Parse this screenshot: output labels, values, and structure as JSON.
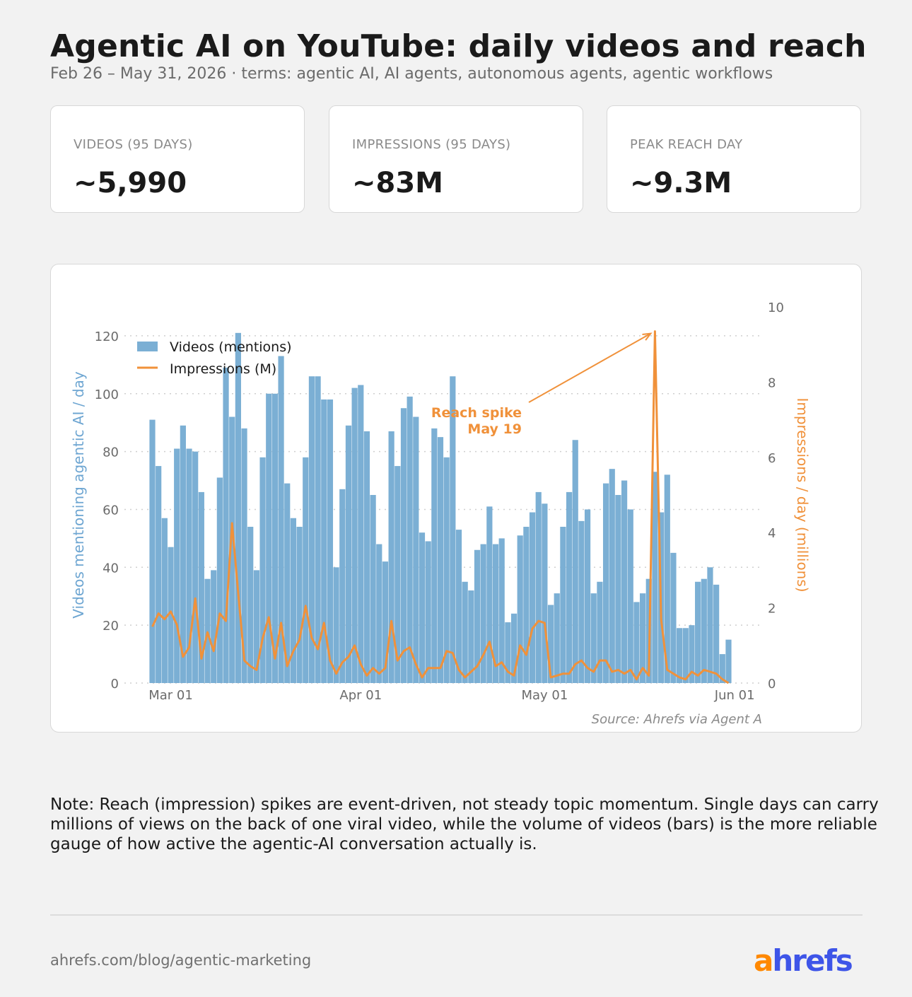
{
  "header": {
    "title": "Agentic AI on YouTube: daily videos and reach",
    "subtitle": "Feb 26 – May 31, 2026  ·  terms: agentic AI, AI agents, autonomous agents, agentic workflows"
  },
  "kpis": [
    {
      "label": "VIDEOS (95 DAYS)",
      "value": "~5,990"
    },
    {
      "label": "IMPRESSIONS (95 DAYS)",
      "value": "~83M"
    },
    {
      "label": "PEAK REACH DAY",
      "value": "~9.3M"
    }
  ],
  "chart_data": {
    "type": "bar",
    "title": "",
    "x_start": "2026-02-26",
    "x_ticks": [
      "Mar 01",
      "Apr 01",
      "May 01",
      "Jun 01"
    ],
    "x_tick_dates": [
      "2026-03-01",
      "2026-04-01",
      "2026-05-01",
      "2026-06-01"
    ],
    "ylabel_left": "Videos mentioning agentic AI / day",
    "ylabel_right": "Impressions / day (millions)",
    "ylim_left": [
      0,
      130
    ],
    "ylim_right": [
      0,
      10
    ],
    "yticks_left": [
      0,
      20,
      40,
      60,
      80,
      100,
      120
    ],
    "yticks_right": [
      0,
      2,
      4,
      6,
      8,
      10
    ],
    "grid": "horizontal dotted",
    "legend_position": "top-left",
    "series": [
      {
        "name": "Videos (mentions)",
        "type": "bar",
        "axis": "left",
        "color": "#7bafd4",
        "values": [
          91,
          75,
          57,
          47,
          81,
          89,
          81,
          80,
          66,
          36,
          39,
          71,
          109,
          92,
          121,
          88,
          54,
          39,
          78,
          100,
          100,
          113,
          69,
          57,
          54,
          78,
          106,
          106,
          98,
          98,
          40,
          67,
          89,
          102,
          103,
          87,
          65,
          48,
          42,
          87,
          75,
          95,
          99,
          92,
          52,
          49,
          88,
          85,
          78,
          106,
          53,
          35,
          32,
          46,
          48,
          61,
          48,
          50,
          21,
          24,
          51,
          54,
          59,
          66,
          62,
          27,
          31,
          54,
          66,
          84,
          56,
          60,
          31,
          35,
          69,
          74,
          65,
          70,
          60,
          28,
          31,
          36,
          73,
          59,
          72,
          45,
          19,
          19,
          20,
          35,
          36,
          40,
          34,
          10,
          15
        ]
      },
      {
        "name": "Impressions (M)",
        "type": "line",
        "axis": "right",
        "color": "#f0913a",
        "values": [
          1.5,
          1.85,
          1.7,
          1.9,
          1.55,
          0.7,
          0.95,
          2.25,
          0.65,
          1.35,
          0.85,
          1.85,
          1.65,
          4.25,
          2.4,
          0.6,
          0.45,
          0.35,
          1.2,
          1.75,
          0.65,
          1.6,
          0.45,
          0.85,
          1.15,
          2.05,
          1.2,
          0.9,
          1.6,
          0.6,
          0.25,
          0.55,
          0.7,
          1.0,
          0.5,
          0.2,
          0.4,
          0.25,
          0.4,
          1.65,
          0.6,
          0.85,
          0.95,
          0.5,
          0.15,
          0.4,
          0.4,
          0.4,
          0.85,
          0.8,
          0.35,
          0.15,
          0.3,
          0.45,
          0.75,
          1.1,
          0.45,
          0.55,
          0.3,
          0.2,
          1.0,
          0.75,
          1.45,
          1.65,
          1.6,
          0.15,
          0.2,
          0.25,
          0.25,
          0.5,
          0.6,
          0.4,
          0.3,
          0.6,
          0.6,
          0.3,
          0.35,
          0.25,
          0.35,
          0.1,
          0.4,
          0.2,
          9.35,
          1.7,
          0.35,
          0.25,
          0.15,
          0.1,
          0.3,
          0.2,
          0.35,
          0.3,
          0.25,
          0.1,
          0.0
        ]
      }
    ],
    "annotation": {
      "text_line1": "Reach spike",
      "text_line2": "May 19",
      "date": "2026-05-19",
      "value": 9.35
    },
    "source": "Source: Ahrefs via Agent A"
  },
  "note": "Note: Reach (impression) spikes are event-driven, not steady topic momentum. Single days can carry millions of views on the back of one viral video, while the volume of videos (bars) is the more reliable gauge of how active the agentic-AI conversation actually is.",
  "footer": {
    "url": "ahrefs.com/blog/agentic-marketing",
    "logo_a": "a",
    "logo_rest": "hrefs"
  }
}
